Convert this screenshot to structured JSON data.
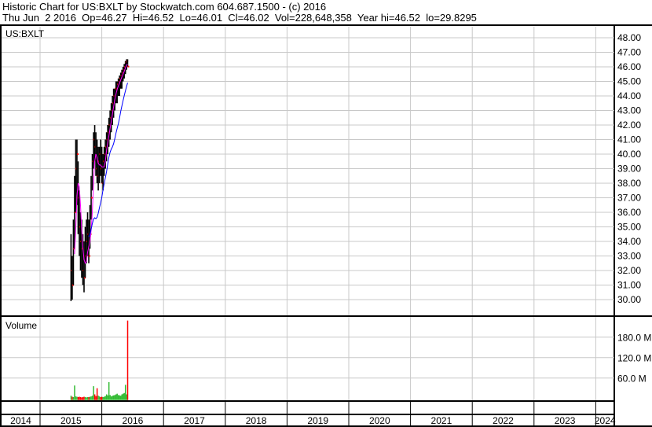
{
  "header": {
    "title": "Historic Chart for US:BXLT by Stockwatch.com 604.687.1500 - (c) 2016",
    "quote": "Thu Jun  2 2016  Op=46.27  Hi=46.52  Lo=46.01  Cl=46.02  Vol=228,648,358  Year hi=46.52  lo=29.8295"
  },
  "chart_data": {
    "type": "candlestick",
    "symbol_label": "US:BXLT",
    "volume_label": "Volume",
    "price_axis": {
      "range": [
        29.5,
        48.5
      ],
      "ticks": [
        "30.00",
        "31.00",
        "32.00",
        "33.00",
        "34.00",
        "35.00",
        "36.00",
        "37.00",
        "38.00",
        "39.00",
        "40.00",
        "41.00",
        "42.00",
        "43.00",
        "44.00",
        "45.00",
        "46.00",
        "47.00",
        "48.00"
      ]
    },
    "volume_axis": {
      "ticks": [
        "60.0 M",
        "120.0 M",
        "180.0 M"
      ],
      "tick_values": [
        60,
        120,
        180
      ],
      "unit": "M"
    },
    "x_axis": {
      "ticks": [
        "2014",
        "2015",
        "2016",
        "2017",
        "2018",
        "2019",
        "2020",
        "2021",
        "2022",
        "2023",
        "2024"
      ]
    },
    "grid": true,
    "colors": {
      "bars": "#000000",
      "ma_short": "#ff00ff",
      "ma_long": "#0000ff",
      "vol_up": "#33bb33",
      "vol_down": "#ff0000",
      "grid": "#c8c8c8"
    },
    "dates": [
      "2015-07-03",
      "2015-07-10",
      "2015-07-17",
      "2015-07-24",
      "2015-07-31",
      "2015-08-07",
      "2015-08-14",
      "2015-08-21",
      "2015-08-28",
      "2015-09-04",
      "2015-09-11",
      "2015-09-18",
      "2015-09-25",
      "2015-10-02",
      "2015-10-09",
      "2015-10-16",
      "2015-10-23",
      "2015-10-30",
      "2015-11-06",
      "2015-11-13",
      "2015-11-20",
      "2015-11-27",
      "2015-12-04",
      "2015-12-11",
      "2015-12-18",
      "2015-12-25",
      "2016-01-01",
      "2016-01-08",
      "2016-01-15",
      "2016-01-22",
      "2016-01-29",
      "2016-02-05",
      "2016-02-12",
      "2016-02-19",
      "2016-02-26",
      "2016-03-04",
      "2016-03-11",
      "2016-03-18",
      "2016-03-25",
      "2016-04-01",
      "2016-04-08",
      "2016-04-15",
      "2016-04-22",
      "2016-04-29",
      "2016-05-06",
      "2016-05-13",
      "2016-05-20",
      "2016-05-27",
      "2016-06-02"
    ],
    "high": [
      34.5,
      33.0,
      35.5,
      38.5,
      41.0,
      41.0,
      39.5,
      37.5,
      36.0,
      35.5,
      34.5,
      34.0,
      35.0,
      35.5,
      36.0,
      35.5,
      36.5,
      38.5,
      40.0,
      41.5,
      42.0,
      41.5,
      41.0,
      40.5,
      40.5,
      41.0,
      40.5,
      40.0,
      40.5,
      41.0,
      41.5,
      42.0,
      42.5,
      43.0,
      43.5,
      44.0,
      44.5,
      44.5,
      45.0,
      45.0,
      45.2,
      45.4,
      45.6,
      45.8,
      46.0,
      46.2,
      46.4,
      46.52,
      46.52
    ],
    "low": [
      29.9,
      30.0,
      31.0,
      33.5,
      36.0,
      36.5,
      34.5,
      33.0,
      32.0,
      31.5,
      31.0,
      30.5,
      31.5,
      32.5,
      33.0,
      32.5,
      33.5,
      35.5,
      37.5,
      39.0,
      39.5,
      38.5,
      38.0,
      37.5,
      38.0,
      38.5,
      38.0,
      37.5,
      38.5,
      39.0,
      39.5,
      40.0,
      40.5,
      41.0,
      41.5,
      42.0,
      42.5,
      43.0,
      43.5,
      43.5,
      44.0,
      44.0,
      44.5,
      44.5,
      45.0,
      45.2,
      45.5,
      45.8,
      46.01
    ],
    "close": [
      32.0,
      31.0,
      33.5,
      36.0,
      39.0,
      40.0,
      37.0,
      35.0,
      34.0,
      33.5,
      32.0,
      31.5,
      33.0,
      34.0,
      34.5,
      33.0,
      34.5,
      37.0,
      39.5,
      41.0,
      40.5,
      39.0,
      38.5,
      39.5,
      40.0,
      39.0,
      38.0,
      39.5,
      40.0,
      40.5,
      41.0,
      41.5,
      42.0,
      42.5,
      43.0,
      43.5,
      44.0,
      44.5,
      44.5,
      44.8,
      45.0,
      45.2,
      45.4,
      45.6,
      45.8,
      46.0,
      46.3,
      46.4,
      46.02
    ],
    "volume_m": [
      8,
      5,
      4,
      38,
      6,
      5,
      4,
      5,
      4,
      3,
      4,
      5,
      4,
      3,
      4,
      4,
      5,
      6,
      8,
      36,
      12,
      7,
      30,
      8,
      6,
      4,
      5,
      4,
      5,
      7,
      12,
      9,
      48,
      10,
      6,
      8,
      9,
      10,
      12,
      14,
      10,
      9,
      8,
      12,
      14,
      16,
      40,
      12,
      228.6
    ]
  }
}
